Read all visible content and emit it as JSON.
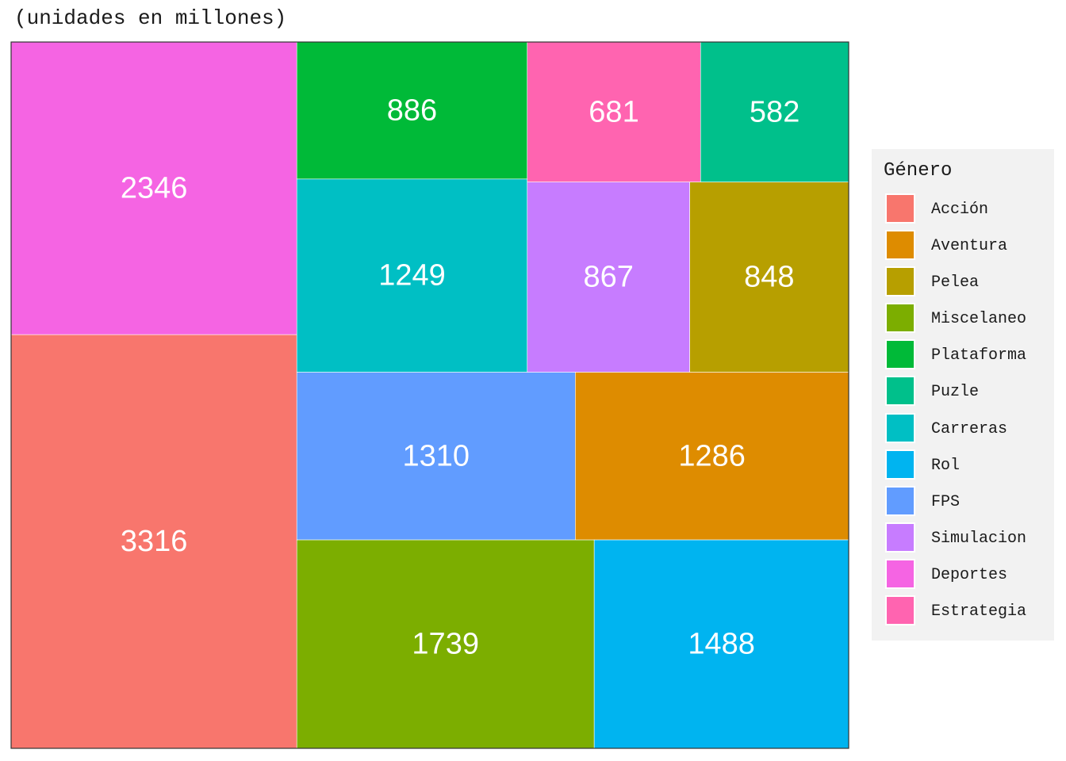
{
  "chart_data": {
    "type": "treemap",
    "subtitle": "(unidades en millones)",
    "legend_title": "Género",
    "legend_position": "right",
    "tiles": [
      {
        "label": "Acción",
        "value": 3316,
        "color": "#F8766D"
      },
      {
        "label": "Aventura",
        "value": 1286,
        "color": "#DE8C00"
      },
      {
        "label": "Pelea",
        "value": 848,
        "color": "#B79F00"
      },
      {
        "label": "Miscelaneo",
        "value": 1739,
        "color": "#7CAE00"
      },
      {
        "label": "Plataforma",
        "value": 886,
        "color": "#00BA38"
      },
      {
        "label": "Puzle",
        "value": 582,
        "color": "#00C08B"
      },
      {
        "label": "Carreras",
        "value": 1249,
        "color": "#00BFC4"
      },
      {
        "label": "Rol",
        "value": 1488,
        "color": "#00B4F0"
      },
      {
        "label": "FPS",
        "value": 1310,
        "color": "#619CFF"
      },
      {
        "label": "Simulacion",
        "value": 867,
        "color": "#C77CFF"
      },
      {
        "label": "Deportes",
        "value": 2346,
        "color": "#F564E3"
      },
      {
        "label": "Estrategia",
        "value": 681,
        "color": "#FF64B0"
      }
    ]
  }
}
